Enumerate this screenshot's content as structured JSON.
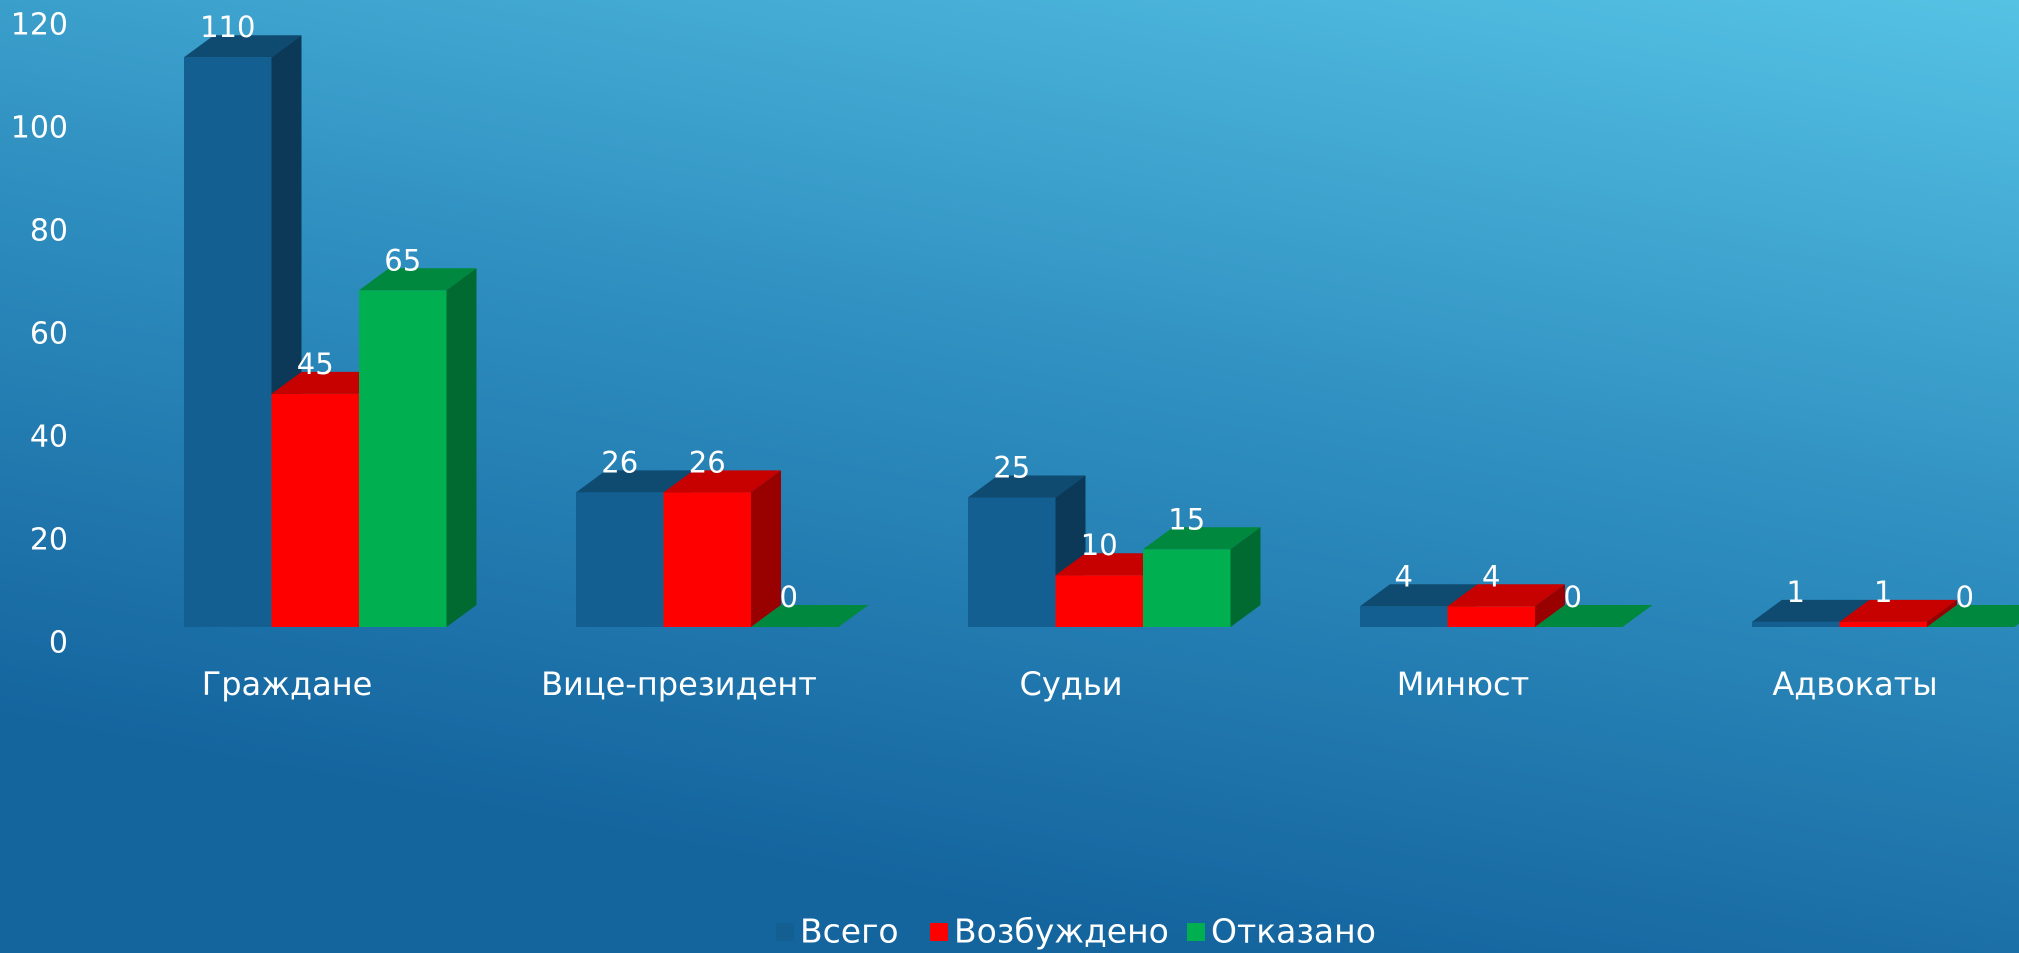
{
  "chart_data": {
    "type": "bar3d",
    "categories": [
      "Граждане",
      "Вице-президент",
      "Судьи",
      "Минюст",
      "Адвокаты"
    ],
    "series": [
      {
        "name": "Всего",
        "color": "#135f91",
        "values": [
          110,
          26,
          25,
          4,
          1
        ]
      },
      {
        "name": "Возбуждено",
        "color": "#ff0000",
        "values": [
          45,
          26,
          10,
          4,
          1
        ]
      },
      {
        "name": "Отказано",
        "color": "#00b050",
        "values": [
          65,
          0,
          15,
          0,
          0
        ]
      }
    ],
    "ylim": [
      0,
      120
    ],
    "yticks": [
      0,
      20,
      40,
      60,
      80,
      100,
      120
    ],
    "grid": false,
    "legend": "bottom"
  }
}
